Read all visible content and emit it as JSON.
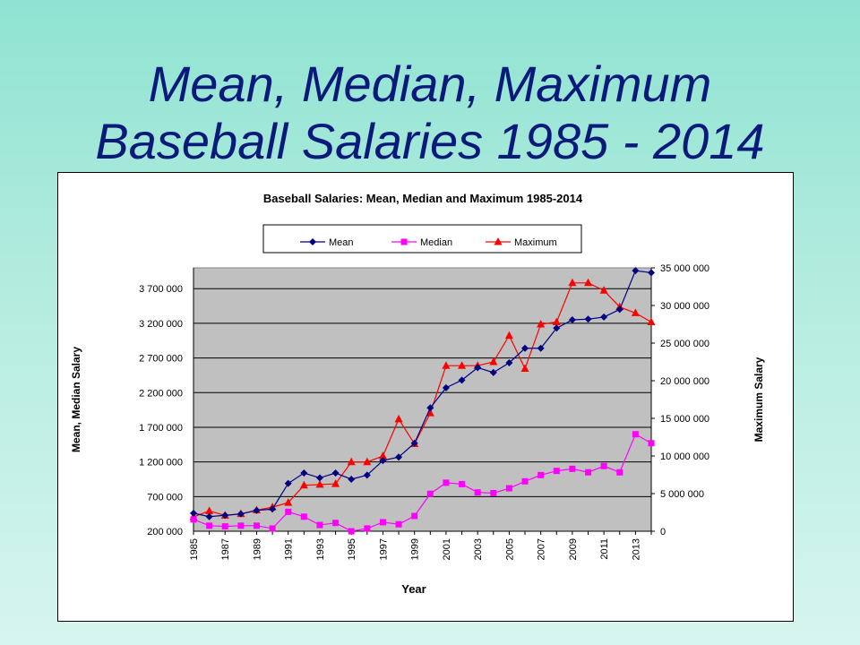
{
  "slide": {
    "title_line1": "Mean, Median, Maximum",
    "title_line2": "Baseball Salaries 1985 - 2014"
  },
  "chart_data": {
    "type": "line",
    "title": "Baseball Salaries: Mean, Median and Maximum 1985-2014",
    "xlabel": "Year",
    "ylabel": "Mean, Median Salary",
    "y2label": "Maximum  Salary",
    "x": [
      1985,
      1986,
      1987,
      1988,
      1989,
      1990,
      1991,
      1992,
      1993,
      1994,
      1995,
      1996,
      1997,
      1998,
      1999,
      2000,
      2001,
      2002,
      2003,
      2004,
      2005,
      2006,
      2007,
      2008,
      2009,
      2010,
      2011,
      2012,
      2013,
      2014
    ],
    "x_tick_labels": [
      "1985",
      "1987",
      "1989",
      "1991",
      "1993",
      "1995",
      "1997",
      "1999",
      "2001",
      "2003",
      "2005",
      "2007",
      "2009",
      "2011",
      "2013"
    ],
    "ylim": [
      200000,
      4000000
    ],
    "y_ticks": [
      200000,
      700000,
      1200000,
      1700000,
      2200000,
      2700000,
      3200000,
      3700000
    ],
    "y_tick_labels": [
      "200 000",
      "700 000",
      "1 200 000",
      "1 700 000",
      "2 200 000",
      "2 700 000",
      "3 200 000",
      "3 700 000"
    ],
    "y2lim": [
      0,
      35000000
    ],
    "y2_ticks": [
      0,
      5000000,
      10000000,
      15000000,
      20000000,
      25000000,
      30000000,
      35000000
    ],
    "y2_tick_labels": [
      "0",
      "5 000 000",
      "10 000 000",
      "15 000 000",
      "20 000 000",
      "25 000 000",
      "30 000 000",
      "35 000 000"
    ],
    "grid": true,
    "legend_position": "top",
    "plot_background": "#c0c0c0",
    "series": [
      {
        "name": "Mean",
        "axis": "left",
        "color": "#000080",
        "marker": "diamond",
        "values": [
          460000,
          410000,
          430000,
          450000,
          500000,
          520000,
          890000,
          1040000,
          970000,
          1040000,
          950000,
          1010000,
          1220000,
          1270000,
          1470000,
          1980000,
          2270000,
          2380000,
          2560000,
          2490000,
          2630000,
          2840000,
          2840000,
          3130000,
          3250000,
          3260000,
          3290000,
          3400000,
          3960000,
          3930000
        ]
      },
      {
        "name": "Median",
        "axis": "left",
        "color": "#ff00ff",
        "marker": "square",
        "values": [
          370000,
          280000,
          270000,
          280000,
          280000,
          240000,
          480000,
          410000,
          290000,
          320000,
          200000,
          240000,
          330000,
          300000,
          420000,
          740000,
          900000,
          880000,
          760000,
          750000,
          820000,
          920000,
          1010000,
          1070000,
          1100000,
          1050000,
          1140000,
          1050000,
          1600000,
          1470000
        ]
      },
      {
        "name": "Maximum",
        "axis": "right",
        "color": "#ff0000",
        "marker": "triangle",
        "values": [
          1900000,
          2700000,
          2100000,
          2300000,
          2800000,
          3200000,
          3800000,
          6100000,
          6200000,
          6300000,
          9200000,
          9200000,
          10000000,
          14900000,
          11600000,
          15700000,
          22000000,
          22000000,
          22000000,
          22500000,
          26000000,
          21600000,
          27500000,
          27800000,
          33000000,
          33000000,
          32000000,
          29800000,
          29000000,
          27800000
        ]
      }
    ]
  }
}
